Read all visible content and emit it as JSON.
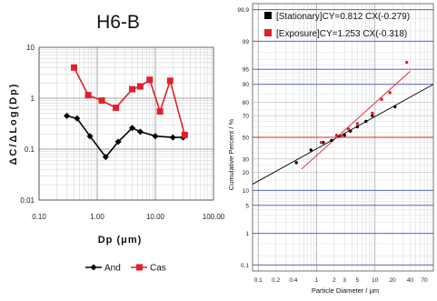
{
  "chart_data": [
    {
      "type": "line",
      "title": "H6-B",
      "xlabel": "Dp (μm)",
      "ylabel": "ΔC/ΔLog(Dp)",
      "x_scale": "log",
      "y_scale": "log",
      "xlim": [
        0.1,
        100
      ],
      "ylim": [
        0.01,
        10
      ],
      "x_ticks": [
        "0.10",
        "1.00",
        "10.00",
        "100.00"
      ],
      "y_ticks": [
        "0.01",
        "0.1",
        "1",
        "10"
      ],
      "grid": true,
      "legend_position": "bottom",
      "series": [
        {
          "name": "And",
          "color": "#000000",
          "marker": "diamond",
          "x": [
            0.3,
            0.45,
            0.75,
            1.4,
            2.3,
            4.0,
            5.5,
            10.0,
            20.0,
            30.0
          ],
          "y": [
            0.45,
            0.4,
            0.18,
            0.07,
            0.14,
            0.26,
            0.22,
            0.18,
            0.17,
            0.17
          ]
        },
        {
          "name": "Cas",
          "color": "#e0202a",
          "marker": "square",
          "x": [
            0.4,
            0.7,
            1.2,
            2.1,
            4.0,
            5.5,
            8.0,
            12.0,
            18.0,
            32.0
          ],
          "y": [
            4.0,
            1.15,
            0.9,
            0.65,
            1.5,
            1.7,
            2.3,
            0.55,
            2.2,
            0.19
          ]
        }
      ]
    },
    {
      "type": "scatter",
      "title": "",
      "xlabel": "Particle Diameter / μm",
      "ylabel": "Cumulative Percent / %",
      "x_scale": "log",
      "y_scale": "probability",
      "xlim": [
        0.08,
        100
      ],
      "x_ticks": [
        "0.1",
        "0.2",
        "0.4",
        "1",
        "2",
        "3",
        "5",
        "10",
        "20",
        "40",
        "70"
      ],
      "y_ticks": [
        "0.1",
        "1",
        "5",
        "10",
        "20",
        "30",
        "50",
        "70",
        "80",
        "90",
        "95",
        "99",
        "99.9"
      ],
      "grid": true,
      "legend_position": "top",
      "series": [
        {
          "name": "[Stationary]CY=0.812 CX(-0.279)",
          "color": "#000000",
          "marker": "circle",
          "x": [
            0.45,
            0.8,
            1.3,
            1.8,
            2.5,
            3.0,
            3.8,
            5.0,
            7.0,
            9.0,
            22.0
          ],
          "y": [
            27,
            38,
            45,
            47,
            51,
            52,
            56,
            60,
            65,
            70,
            77
          ]
        },
        {
          "name": "[Exposure]CY=1.253 CX(-0.318)",
          "color": "#e0202a",
          "marker": "circle",
          "x": [
            1.2,
            2.2,
            2.6,
            3.5,
            5.0,
            9.0,
            13.0,
            18.0,
            35.0
          ],
          "y": [
            45,
            52,
            51,
            58,
            63,
            72,
            82,
            86,
            96.5
          ]
        }
      ]
    }
  ]
}
